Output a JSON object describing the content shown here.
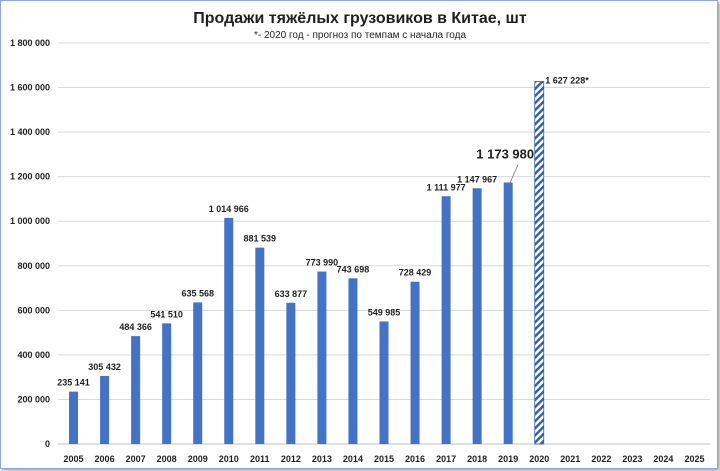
{
  "chart_data": {
    "type": "bar",
    "title": "Продажи тяжёлых грузовиков в Китае, шт",
    "subtitle": "*- 2020 год - прогноз по темпам с начала года",
    "xlabel": "",
    "ylabel": "",
    "ylim": [
      0,
      1800000
    ],
    "yticks": [
      0,
      200000,
      400000,
      600000,
      800000,
      1000000,
      1200000,
      1400000,
      1600000,
      1800000
    ],
    "ytick_labels": [
      "0",
      "200 000",
      "400 000",
      "600 000",
      "800 000",
      "1 000 000",
      "1 200 000",
      "1 400 000",
      "1 600 000",
      "1 800 000"
    ],
    "grid": true,
    "categories": [
      "2005",
      "2006",
      "2007",
      "2008",
      "2009",
      "2010",
      "2011",
      "2012",
      "2013",
      "2014",
      "2015",
      "2016",
      "2017",
      "2018",
      "2019",
      "2020",
      "2021",
      "2022",
      "2023",
      "2024",
      "2025"
    ],
    "values": [
      235141,
      305432,
      484366,
      541510,
      635568,
      1014966,
      881539,
      633877,
      773990,
      743698,
      549985,
      728429,
      1111977,
      1147967,
      1173980,
      1627228,
      null,
      null,
      null,
      null,
      null
    ],
    "data_labels": [
      "235 141",
      "305 432",
      "484 366",
      "541 510",
      "635 568",
      "1 014 966",
      "881 539",
      "633 877",
      "773 990",
      "743 698",
      "549 985",
      "728 429",
      "1 111 977",
      "1 147 967",
      "1 173 980",
      "1 627 228*",
      "",
      "",
      "",
      "",
      ""
    ],
    "forecast_index": 15,
    "highlight_index": 14,
    "colors": {
      "bar": "#4472c4",
      "forecast": "#2e5fa8",
      "grid": "#d9d9d9",
      "axis": "#bfbfbf"
    }
  }
}
